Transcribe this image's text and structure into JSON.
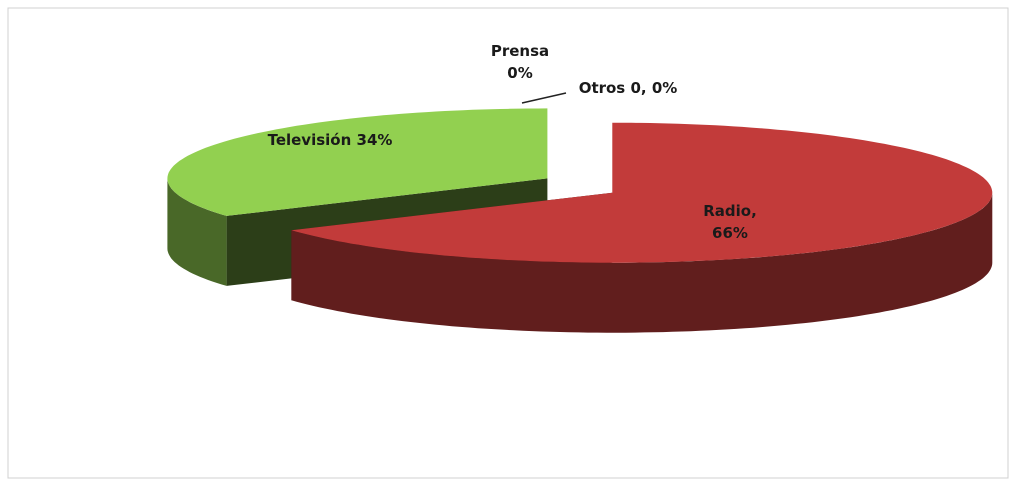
{
  "chart_data": {
    "type": "pie3d",
    "categories": [
      "Radio",
      "Televisión",
      "Prensa",
      "Otros"
    ],
    "values": [
      66,
      34,
      0,
      0
    ],
    "value_labels": [
      "Radio,\n66%",
      "Televisión 34%",
      "Prensa\n0%",
      "Otros 0, 0%"
    ],
    "colors": [
      "#c23b3a",
      "#92d050",
      "#4f81bd",
      "#8064a2"
    ]
  }
}
